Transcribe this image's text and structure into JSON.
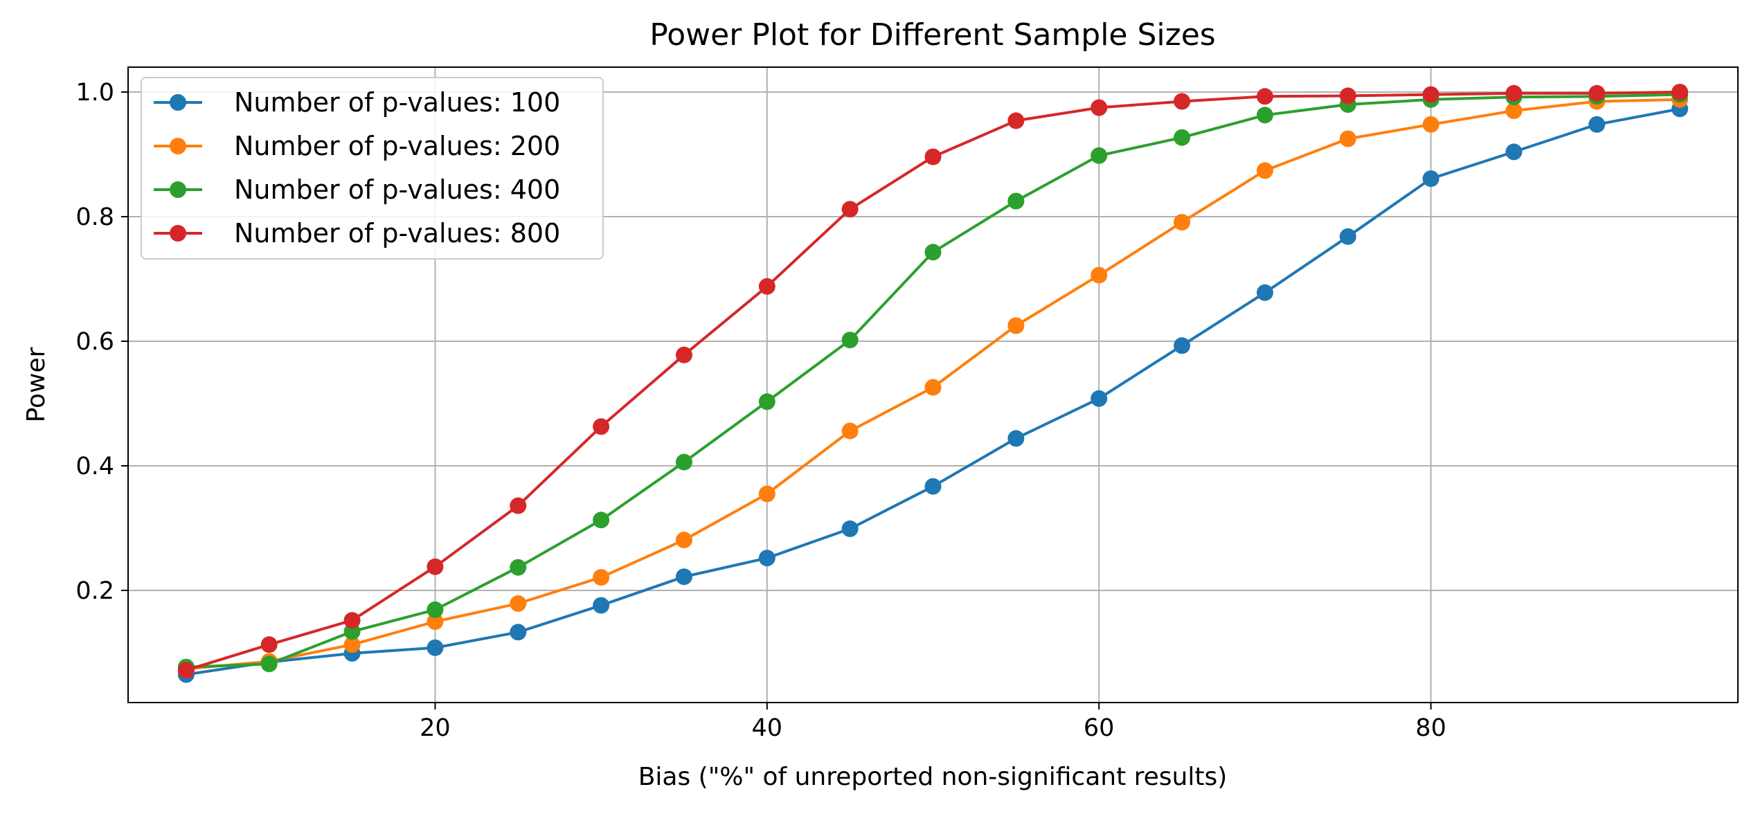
{
  "chart_data": {
    "type": "line",
    "title": "Power Plot for Different Sample Sizes",
    "xlabel": "Bias (\"%\" of unreported non-significant results)",
    "ylabel": "Power",
    "xlim": [
      1.5,
      98.5
    ],
    "ylim": [
      0.02,
      1.04
    ],
    "xticks": [
      20,
      40,
      60,
      80
    ],
    "yticks": [
      0.2,
      0.4,
      0.6,
      0.8,
      1.0
    ],
    "xtick_labels": [
      "20",
      "40",
      "60",
      "80"
    ],
    "ytick_labels": [
      "0.2",
      "0.4",
      "0.6",
      "0.8",
      "1.0"
    ],
    "grid": true,
    "legend_position": "top-left",
    "x": [
      5,
      10,
      15,
      20,
      25,
      30,
      35,
      40,
      45,
      50,
      55,
      60,
      65,
      70,
      75,
      80,
      85,
      90,
      95
    ],
    "series": [
      {
        "name": "Number of p-values: 100",
        "color": "#1f77b4",
        "values": [
          0.065,
          0.085,
          0.099,
          0.108,
          0.133,
          0.176,
          0.222,
          0.252,
          0.299,
          0.367,
          0.444,
          0.508,
          0.593,
          0.678,
          0.768,
          0.861,
          0.904,
          0.948,
          0.973
        ]
      },
      {
        "name": "Number of p-values: 200",
        "color": "#ff7f0e",
        "values": [
          0.074,
          0.086,
          0.113,
          0.15,
          0.179,
          0.221,
          0.281,
          0.355,
          0.456,
          0.526,
          0.625,
          0.706,
          0.791,
          0.874,
          0.925,
          0.948,
          0.97,
          0.985,
          0.988
        ]
      },
      {
        "name": "Number of p-values: 400",
        "color": "#2ca02c",
        "values": [
          0.077,
          0.082,
          0.134,
          0.169,
          0.237,
          0.313,
          0.406,
          0.503,
          0.602,
          0.743,
          0.825,
          0.898,
          0.927,
          0.963,
          0.98,
          0.988,
          0.992,
          0.993,
          0.996
        ]
      },
      {
        "name": "Number of p-values: 800",
        "color": "#d62728",
        "values": [
          0.072,
          0.113,
          0.152,
          0.238,
          0.336,
          0.463,
          0.578,
          0.688,
          0.812,
          0.896,
          0.954,
          0.975,
          0.985,
          0.993,
          0.994,
          0.996,
          0.998,
          0.998,
          1.0
        ]
      }
    ]
  }
}
